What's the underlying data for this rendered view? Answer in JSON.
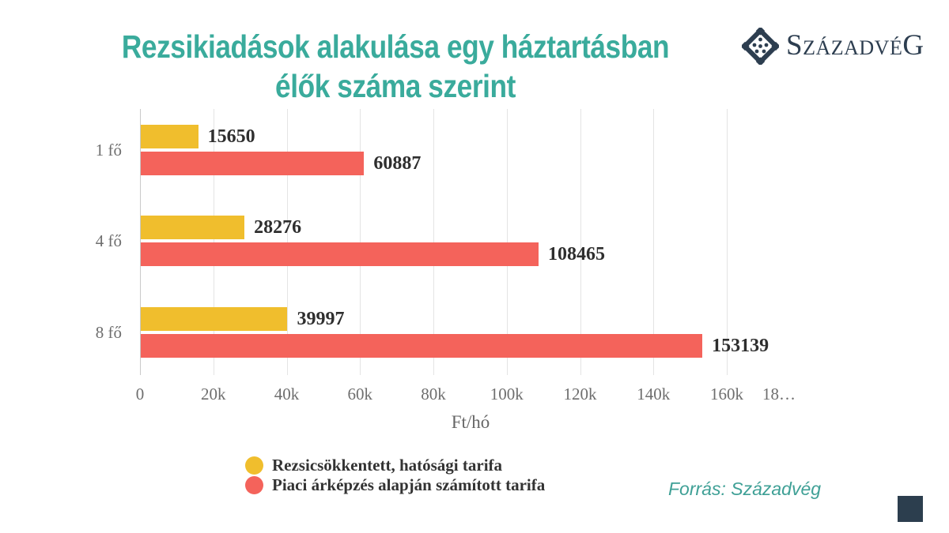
{
  "title": {
    "line1": "Rezsikiadások alakulása egy háztartásban",
    "line2": "élők száma szerint"
  },
  "logo": {
    "text": "SzázadvéG",
    "icon": "szazadveg-diamond-icon",
    "color": "#2d3e50"
  },
  "source": {
    "text": "Forrás: Századvég"
  },
  "chart_data": {
    "type": "bar",
    "orientation": "horizontal",
    "categories": [
      "1 fő",
      "4 fő",
      "8 fő"
    ],
    "series": [
      {
        "name": "Rezsicsökkentett, hatósági tarifa",
        "color": "#f0be2d",
        "values": [
          15650,
          28276,
          39997
        ]
      },
      {
        "name": "Piaci árképzés alapján számított tarifa",
        "color": "#f4635b",
        "values": [
          60887,
          108465,
          153139
        ]
      }
    ],
    "xlabel": "Ft/hó",
    "xlim": [
      0,
      180000
    ],
    "xticks": [
      "0",
      "20k",
      "40k",
      "60k",
      "80k",
      "100k",
      "120k",
      "140k",
      "160k",
      "18…"
    ],
    "grid": true,
    "legend_position": "bottom-left",
    "value_labels": "outside-end"
  },
  "colors": {
    "title_teal": "#3aab9c",
    "source_teal": "#3fa096",
    "series_yellow": "#f0be2d",
    "series_red": "#f4635b",
    "logo_navy": "#2d3e50",
    "corner_square": "#2c3e4e",
    "gridline": "#e4e4e4",
    "label_gray": "#6e6e6e",
    "value_text": "#2e2e2e"
  }
}
